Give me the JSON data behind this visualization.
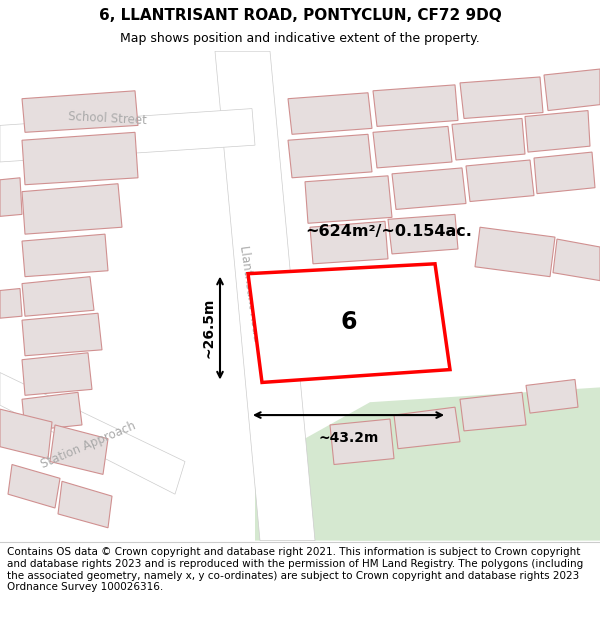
{
  "title": "6, LLANTRISANT ROAD, PONTYCLUN, CF72 9DQ",
  "subtitle": "Map shows position and indicative extent of the property.",
  "title_fontsize": 11,
  "subtitle_fontsize": 9,
  "footer": "Contains OS data © Crown copyright and database right 2021. This information is subject to Crown copyright and database rights 2023 and is reproduced with the permission of HM Land Registry. The polygons (including the associated geometry, namely x, y co-ordinates) are subject to Crown copyright and database rights 2023 Ordnance Survey 100026316.",
  "footer_fontsize": 7.5,
  "bg_map_color": "#f5f5f5",
  "building_fill": "#e6dede",
  "building_stroke": "#d09090",
  "highlight_fill": "#ffffff",
  "highlight_stroke": "#ff0000",
  "green_area_color": "#d5e8d0",
  "area_label": "~624m²/~0.154ac.",
  "dim_width": "~43.2m",
  "dim_height": "~26.5m",
  "number_label": "6"
}
